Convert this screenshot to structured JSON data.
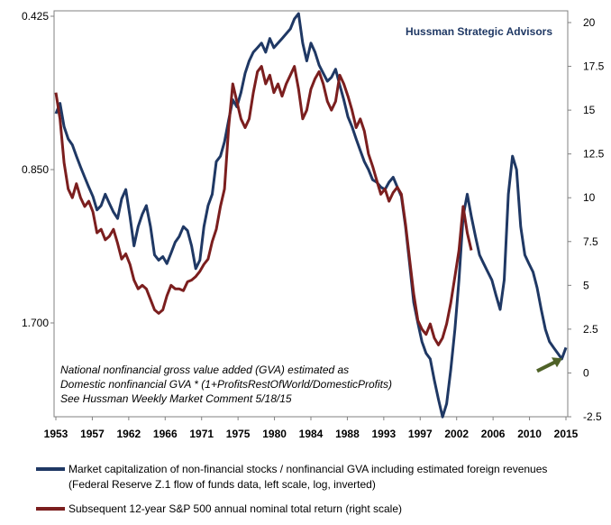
{
  "chart_data": {
    "type": "line",
    "source_label": "Hussman Strategic Advisors",
    "note_lines": [
      "National nonfinancial gross value added (GVA) estimated as",
      "Domestic nonfinancial GVA  * (1+ProfitsRestOfWorld/DomesticProfits)",
      "See Hussman Weekly Market Comment 5/18/15"
    ],
    "left_axis": {
      "scale": "log",
      "inverted": true,
      "ticks": [
        "0.425",
        "0.850",
        "1.700"
      ]
    },
    "right_axis": {
      "ylim": [
        -2.5,
        20
      ],
      "ticks": [
        "20",
        "17.5",
        "15",
        "12.5",
        "10",
        "7.5",
        "5",
        "2.5",
        "0",
        "-2.5"
      ]
    },
    "x_axis": {
      "xlim": [
        1953,
        2015
      ],
      "ticks": [
        "1953",
        "1957",
        "1962",
        "1966",
        "1971",
        "1975",
        "1980",
        "1984",
        "1988",
        "1993",
        "1997",
        "2002",
        "2006",
        "2010",
        "2015"
      ]
    },
    "series": [
      {
        "name": "Market capitalization of non-financial stocks / nonfinancial GVA including estimated foreign revenues",
        "name_line2": "(Federal Reserve Z.1 flow of funds data, left scale, log, inverted)",
        "color": "#1f3864",
        "axis": "left",
        "points": [
          [
            1953.0,
            0.66
          ],
          [
            1953.5,
            0.63
          ],
          [
            1954.0,
            0.7
          ],
          [
            1954.5,
            0.74
          ],
          [
            1955.0,
            0.76
          ],
          [
            1955.5,
            0.8
          ],
          [
            1956.0,
            0.84
          ],
          [
            1956.5,
            0.88
          ],
          [
            1957.0,
            0.92
          ],
          [
            1957.5,
            0.96
          ],
          [
            1958.0,
            1.02
          ],
          [
            1958.5,
            1.0
          ],
          [
            1959.0,
            0.95
          ],
          [
            1959.5,
            0.99
          ],
          [
            1960.0,
            1.03
          ],
          [
            1960.5,
            1.06
          ],
          [
            1961.0,
            0.97
          ],
          [
            1961.5,
            0.93
          ],
          [
            1962.0,
            1.05
          ],
          [
            1962.5,
            1.2
          ],
          [
            1963.0,
            1.1
          ],
          [
            1963.5,
            1.04
          ],
          [
            1964.0,
            1.0
          ],
          [
            1964.5,
            1.1
          ],
          [
            1965.0,
            1.25
          ],
          [
            1965.5,
            1.28
          ],
          [
            1966.0,
            1.26
          ],
          [
            1966.5,
            1.3
          ],
          [
            1967.0,
            1.24
          ],
          [
            1967.5,
            1.18
          ],
          [
            1968.0,
            1.15
          ],
          [
            1968.5,
            1.1
          ],
          [
            1969.0,
            1.12
          ],
          [
            1969.5,
            1.2
          ],
          [
            1970.0,
            1.33
          ],
          [
            1970.5,
            1.28
          ],
          [
            1971.0,
            1.1
          ],
          [
            1971.5,
            1.0
          ],
          [
            1972.0,
            0.95
          ],
          [
            1972.5,
            0.82
          ],
          [
            1973.0,
            0.8
          ],
          [
            1973.5,
            0.75
          ],
          [
            1974.0,
            0.68
          ],
          [
            1974.5,
            0.62
          ],
          [
            1975.0,
            0.64
          ],
          [
            1975.5,
            0.6
          ],
          [
            1976.0,
            0.55
          ],
          [
            1976.5,
            0.52
          ],
          [
            1977.0,
            0.5
          ],
          [
            1977.5,
            0.49
          ],
          [
            1978.0,
            0.48
          ],
          [
            1978.5,
            0.5
          ],
          [
            1979.0,
            0.47
          ],
          [
            1979.5,
            0.49
          ],
          [
            1980.0,
            0.48
          ],
          [
            1980.5,
            0.47
          ],
          [
            1981.0,
            0.46
          ],
          [
            1981.5,
            0.45
          ],
          [
            1982.0,
            0.43
          ],
          [
            1982.5,
            0.42
          ],
          [
            1983.0,
            0.48
          ],
          [
            1983.5,
            0.52
          ],
          [
            1984.0,
            0.48
          ],
          [
            1984.5,
            0.5
          ],
          [
            1985.0,
            0.53
          ],
          [
            1985.5,
            0.55
          ],
          [
            1986.0,
            0.57
          ],
          [
            1986.5,
            0.56
          ],
          [
            1987.0,
            0.54
          ],
          [
            1987.5,
            0.58
          ],
          [
            1988.0,
            0.62
          ],
          [
            1988.5,
            0.67
          ],
          [
            1989.0,
            0.7
          ],
          [
            1989.5,
            0.74
          ],
          [
            1990.0,
            0.78
          ],
          [
            1990.5,
            0.82
          ],
          [
            1991.0,
            0.85
          ],
          [
            1991.5,
            0.89
          ],
          [
            1992.0,
            0.9
          ],
          [
            1992.5,
            0.92
          ],
          [
            1993.0,
            0.93
          ],
          [
            1993.5,
            0.9
          ],
          [
            1994.0,
            0.88
          ],
          [
            1994.5,
            0.92
          ],
          [
            1995.0,
            0.96
          ],
          [
            1995.5,
            1.1
          ],
          [
            1996.0,
            1.3
          ],
          [
            1996.5,
            1.55
          ],
          [
            1997.0,
            1.7
          ],
          [
            1997.5,
            1.85
          ],
          [
            1998.0,
            1.95
          ],
          [
            1998.5,
            2.0
          ],
          [
            1999.0,
            2.2
          ],
          [
            1999.5,
            2.4
          ],
          [
            2000.0,
            2.6
          ],
          [
            2000.5,
            2.45
          ],
          [
            2001.0,
            2.1
          ],
          [
            2001.5,
            1.75
          ],
          [
            2002.0,
            1.4
          ],
          [
            2002.5,
            1.05
          ],
          [
            2003.0,
            0.95
          ],
          [
            2003.5,
            1.05
          ],
          [
            2004.0,
            1.15
          ],
          [
            2004.5,
            1.25
          ],
          [
            2005.0,
            1.3
          ],
          [
            2005.5,
            1.35
          ],
          [
            2006.0,
            1.4
          ],
          [
            2006.5,
            1.5
          ],
          [
            2007.0,
            1.6
          ],
          [
            2007.5,
            1.4
          ],
          [
            2008.0,
            0.95
          ],
          [
            2008.5,
            0.8
          ],
          [
            2009.0,
            0.85
          ],
          [
            2009.5,
            1.1
          ],
          [
            2010.0,
            1.25
          ],
          [
            2010.5,
            1.3
          ],
          [
            2011.0,
            1.35
          ],
          [
            2011.5,
            1.45
          ],
          [
            2012.0,
            1.6
          ],
          [
            2012.5,
            1.75
          ],
          [
            2013.0,
            1.85
          ],
          [
            2013.5,
            1.9
          ],
          [
            2014.0,
            1.95
          ],
          [
            2014.5,
            2.0
          ],
          [
            2015.0,
            1.9
          ]
        ]
      },
      {
        "name": "Subsequent 12-year S&P 500 annual nominal total return (right scale)",
        "color": "#7b1e1e",
        "axis": "right",
        "points": [
          [
            1953.0,
            16.0
          ],
          [
            1953.5,
            14.5
          ],
          [
            1954.0,
            12.0
          ],
          [
            1954.5,
            10.5
          ],
          [
            1955.0,
            10.0
          ],
          [
            1955.5,
            10.8
          ],
          [
            1956.0,
            10.0
          ],
          [
            1956.5,
            9.5
          ],
          [
            1957.0,
            9.8
          ],
          [
            1957.5,
            9.2
          ],
          [
            1958.0,
            8.0
          ],
          [
            1958.5,
            8.2
          ],
          [
            1959.0,
            7.6
          ],
          [
            1959.5,
            7.8
          ],
          [
            1960.0,
            8.2
          ],
          [
            1960.5,
            7.4
          ],
          [
            1961.0,
            6.5
          ],
          [
            1961.5,
            6.8
          ],
          [
            1962.0,
            6.2
          ],
          [
            1962.5,
            5.3
          ],
          [
            1963.0,
            4.8
          ],
          [
            1963.5,
            5.0
          ],
          [
            1964.0,
            4.8
          ],
          [
            1964.5,
            4.2
          ],
          [
            1965.0,
            3.6
          ],
          [
            1965.5,
            3.4
          ],
          [
            1966.0,
            3.6
          ],
          [
            1966.5,
            4.4
          ],
          [
            1967.0,
            5.0
          ],
          [
            1967.5,
            4.8
          ],
          [
            1968.0,
            4.8
          ],
          [
            1968.5,
            4.7
          ],
          [
            1969.0,
            5.2
          ],
          [
            1969.5,
            5.3
          ],
          [
            1970.0,
            5.5
          ],
          [
            1970.5,
            5.8
          ],
          [
            1971.0,
            6.2
          ],
          [
            1971.5,
            6.5
          ],
          [
            1972.0,
            7.5
          ],
          [
            1972.5,
            8.2
          ],
          [
            1973.0,
            9.5
          ],
          [
            1973.5,
            10.5
          ],
          [
            1974.0,
            14.0
          ],
          [
            1974.5,
            16.5
          ],
          [
            1975.0,
            15.5
          ],
          [
            1975.5,
            14.5
          ],
          [
            1976.0,
            14.0
          ],
          [
            1976.5,
            14.5
          ],
          [
            1977.0,
            16.0
          ],
          [
            1977.5,
            17.2
          ],
          [
            1978.0,
            17.5
          ],
          [
            1978.5,
            16.5
          ],
          [
            1979.0,
            17.0
          ],
          [
            1979.5,
            16.0
          ],
          [
            1980.0,
            16.5
          ],
          [
            1980.5,
            15.8
          ],
          [
            1981.0,
            16.5
          ],
          [
            1981.5,
            17.0
          ],
          [
            1982.0,
            17.5
          ],
          [
            1982.5,
            16.2
          ],
          [
            1983.0,
            14.5
          ],
          [
            1983.5,
            15.0
          ],
          [
            1984.0,
            16.2
          ],
          [
            1984.5,
            16.8
          ],
          [
            1985.0,
            17.2
          ],
          [
            1985.5,
            16.5
          ],
          [
            1986.0,
            15.5
          ],
          [
            1986.5,
            15.0
          ],
          [
            1987.0,
            15.5
          ],
          [
            1987.5,
            17.0
          ],
          [
            1988.0,
            16.5
          ],
          [
            1988.5,
            15.8
          ],
          [
            1989.0,
            15.0
          ],
          [
            1989.5,
            14.0
          ],
          [
            1990.0,
            14.5
          ],
          [
            1990.5,
            13.8
          ],
          [
            1991.0,
            12.5
          ],
          [
            1991.5,
            11.8
          ],
          [
            1992.0,
            11.0
          ],
          [
            1992.5,
            10.2
          ],
          [
            1993.0,
            10.5
          ],
          [
            1993.5,
            9.8
          ],
          [
            1994.0,
            10.3
          ],
          [
            1994.5,
            10.6
          ],
          [
            1995.0,
            10.2
          ],
          [
            1995.5,
            8.5
          ],
          [
            1996.0,
            6.5
          ],
          [
            1996.5,
            4.5
          ],
          [
            1997.0,
            3.0
          ],
          [
            1997.5,
            2.5
          ],
          [
            1998.0,
            2.2
          ],
          [
            1998.5,
            2.8
          ],
          [
            1999.0,
            2.0
          ],
          [
            1999.5,
            1.6
          ],
          [
            2000.0,
            2.0
          ],
          [
            2000.5,
            2.8
          ],
          [
            2001.0,
            4.0
          ],
          [
            2001.5,
            5.5
          ],
          [
            2002.0,
            7.0
          ],
          [
            2002.5,
            9.5
          ],
          [
            2003.0,
            8.0
          ],
          [
            2003.5,
            7.0
          ]
        ]
      }
    ],
    "annotation": {
      "type": "arrow",
      "color": "#4f6228",
      "points_to": [
        2015.0,
        1.9
      ]
    }
  }
}
